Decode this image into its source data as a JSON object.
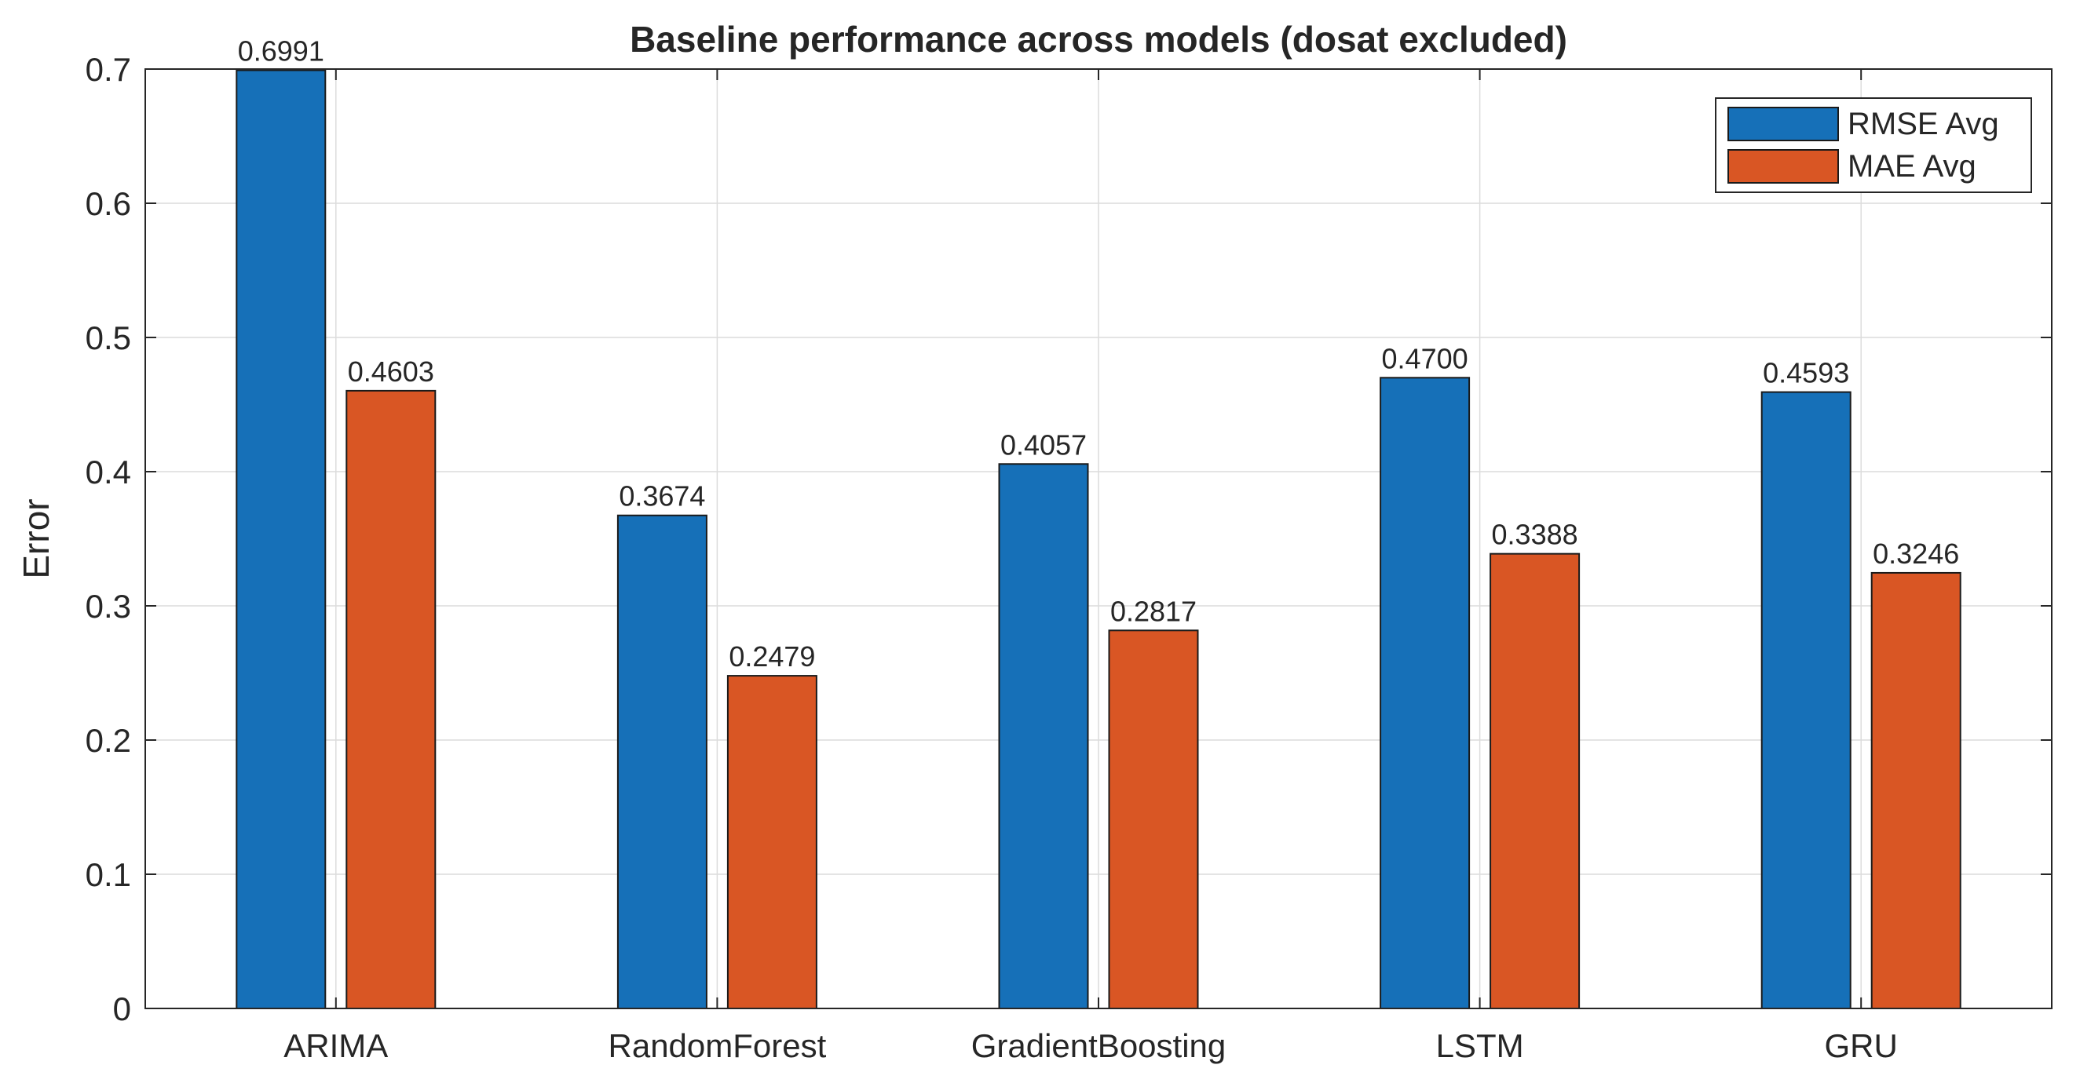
{
  "chart_data": {
    "type": "bar",
    "title": "Baseline performance across models (dosat excluded)",
    "xlabel": "",
    "ylabel": "Error",
    "categories": [
      "ARIMA",
      "RandomForest",
      "GradientBoosting",
      "LSTM",
      "GRU"
    ],
    "series": [
      {
        "name": "RMSE Avg",
        "color": "#1670b8",
        "values": [
          0.6991,
          0.3674,
          0.4057,
          0.47,
          0.4593
        ],
        "labels": [
          "0.6991",
          "0.3674",
          "0.4057",
          "0.4700",
          "0.4593"
        ]
      },
      {
        "name": "MAE Avg",
        "color": "#d95624",
        "values": [
          0.4603,
          0.2479,
          0.2817,
          0.3388,
          0.3246
        ],
        "labels": [
          "0.4603",
          "0.2479",
          "0.2817",
          "0.3388",
          "0.3246"
        ]
      }
    ],
    "ylim": [
      0,
      0.7
    ],
    "yticks": [
      0,
      0.1,
      0.2,
      0.3,
      0.4,
      0.5,
      0.6,
      0.7
    ],
    "ytick_labels": [
      "0",
      "0.1",
      "0.2",
      "0.3",
      "0.4",
      "0.5",
      "0.6",
      "0.7"
    ],
    "grid": true,
    "legend_position": "top-right"
  }
}
